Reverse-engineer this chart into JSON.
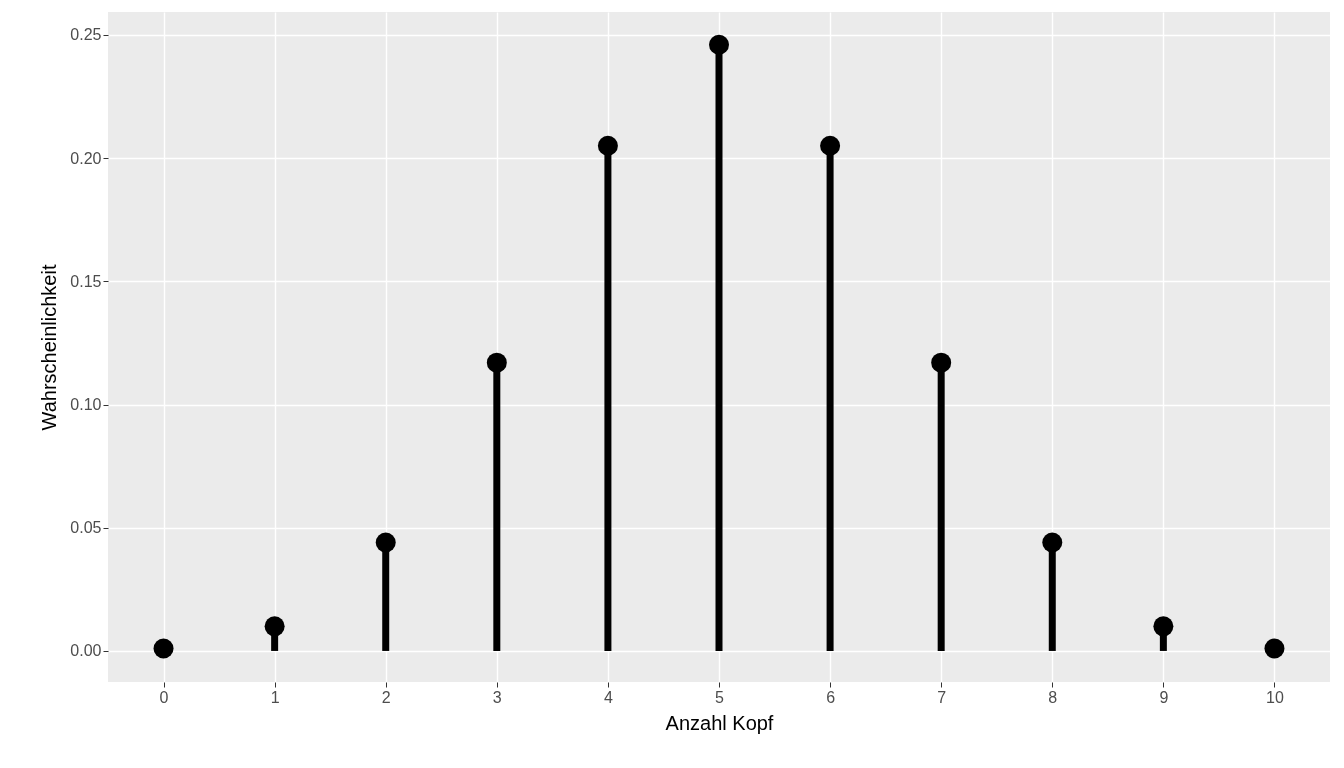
{
  "chart_data": {
    "type": "lollipop",
    "xlabel": "Anzahl Kopf",
    "ylabel": "Wahrscheinlichkeit",
    "x": [
      0,
      1,
      2,
      3,
      4,
      5,
      6,
      7,
      8,
      9,
      10
    ],
    "series": [
      {
        "color": "#000000",
        "values": [
          0.001,
          0.01,
          0.044,
          0.117,
          0.205,
          0.246,
          0.205,
          0.117,
          0.044,
          0.01,
          0.001
        ]
      }
    ],
    "xlim": [
      -0.5,
      10.5
    ],
    "xticks": [
      0,
      1,
      2,
      3,
      4,
      5,
      6,
      7,
      8,
      9,
      10
    ],
    "ylim": [
      -0.0126,
      0.2593
    ],
    "yticks": [
      {
        "value": 0,
        "label": "0.00"
      },
      {
        "value": 0.05,
        "label": "0.05"
      },
      {
        "value": 0.1,
        "label": "0.10"
      },
      {
        "value": 0.15,
        "label": "0.15"
      },
      {
        "value": 0.2,
        "label": "0.20"
      },
      {
        "value": 0.25,
        "label": "0.25"
      }
    ],
    "grid": true,
    "marker": "circle"
  }
}
